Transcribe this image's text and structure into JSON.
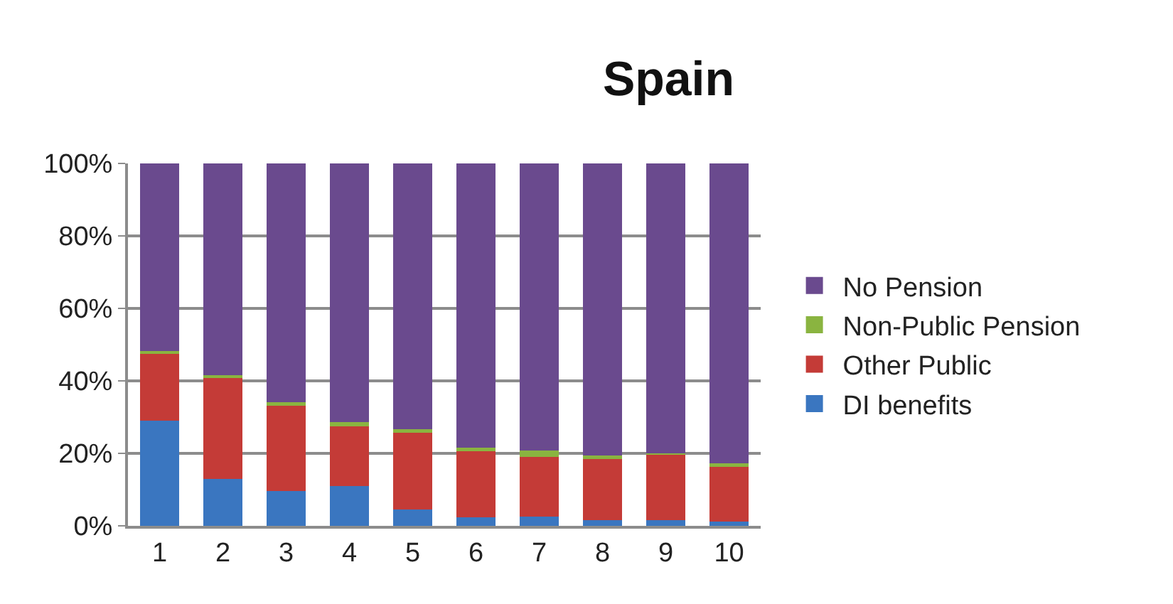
{
  "chart_data": {
    "type": "bar",
    "title": "Spain",
    "stacked": true,
    "categories": [
      "1",
      "2",
      "3",
      "4",
      "5",
      "6",
      "7",
      "8",
      "9",
      "10"
    ],
    "series": [
      {
        "name": "DI benefits",
        "color": "#3a76c0",
        "values": [
          29.0,
          12.9,
          9.7,
          10.9,
          4.6,
          2.4,
          2.5,
          1.6,
          1.6,
          1.2
        ]
      },
      {
        "name": "Other Public",
        "color": "#c43b37",
        "values": [
          18.5,
          27.9,
          23.5,
          16.6,
          21.1,
          18.2,
          16.5,
          17.1,
          18.2,
          15.1
        ]
      },
      {
        "name": "Non-Public Pension",
        "color": "#8ab440",
        "values": [
          0.8,
          0.8,
          0.9,
          1.1,
          1.0,
          1.0,
          1.8,
          0.7,
          0.2,
          1.0
        ]
      },
      {
        "name": "No Pension",
        "color": "#6a4a8e",
        "values": [
          51.7,
          58.4,
          65.9,
          71.4,
          73.3,
          78.4,
          79.2,
          80.6,
          80.0,
          82.7
        ]
      }
    ],
    "ylim": [
      0,
      100
    ],
    "yticks": [
      {
        "value": 0,
        "label": "0%"
      },
      {
        "value": 20,
        "label": "20%"
      },
      {
        "value": 40,
        "label": "40%"
      },
      {
        "value": 60,
        "label": "60%"
      },
      {
        "value": 80,
        "label": "80%"
      },
      {
        "value": 100,
        "label": "100%"
      }
    ],
    "grid": "y",
    "legend": "right"
  }
}
